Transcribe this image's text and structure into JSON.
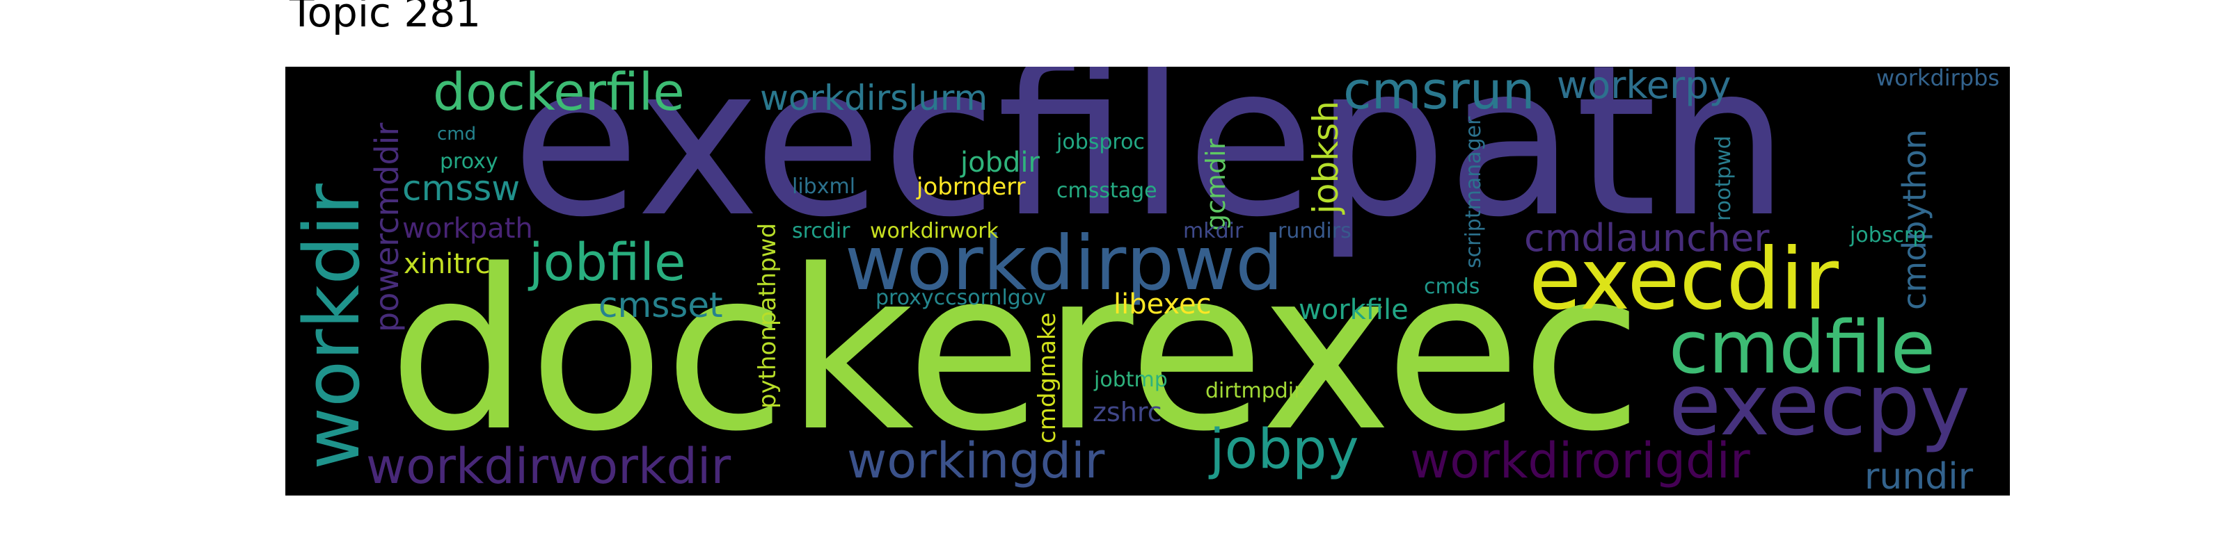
{
  "title": "Topic 281",
  "words": [
    {
      "text": "execfilepath",
      "color": "#443983"
    },
    {
      "text": "dockerexec",
      "color": "#95d840"
    },
    {
      "text": "workdirpwd",
      "color": "#355f8d"
    },
    {
      "text": "execdir",
      "color": "#dde318"
    },
    {
      "text": "cmdfile",
      "color": "#3dbc74"
    },
    {
      "text": "execpy",
      "color": "#46327e"
    },
    {
      "text": "workdir",
      "color": "#1f948c"
    },
    {
      "text": "dockerfile",
      "color": "#3dbc74"
    },
    {
      "text": "workdirslurm",
      "color": "#2a788e"
    },
    {
      "text": "cmsrun",
      "color": "#2a788e"
    },
    {
      "text": "workerpy",
      "color": "#2d708e"
    },
    {
      "text": "workdirpbs",
      "color": "#33638d"
    },
    {
      "text": "jobfile",
      "color": "#29af7f"
    },
    {
      "text": "cmsset",
      "color": "#26828e"
    },
    {
      "text": "jobpy",
      "color": "#1f9a8a"
    },
    {
      "text": "workingdir",
      "color": "#3b528b"
    },
    {
      "text": "workdirworkdir",
      "color": "#482878"
    },
    {
      "text": "workdirorigdir",
      "color": "#440154"
    },
    {
      "text": "rundir",
      "color": "#33638d"
    },
    {
      "text": "cmdlauncher",
      "color": "#472d7b"
    },
    {
      "text": "cmdpython",
      "color": "#31688e"
    },
    {
      "text": "cmssw",
      "color": "#21918c"
    },
    {
      "text": "workpath",
      "color": "#482475"
    },
    {
      "text": "xinitrc",
      "color": "#c2df23"
    },
    {
      "text": "powercmddir",
      "color": "#472c7a"
    },
    {
      "text": "jobdir",
      "color": "#2fb47c"
    },
    {
      "text": "jobrnderr",
      "color": "#fde725"
    },
    {
      "text": "jobsproc",
      "color": "#22a884"
    },
    {
      "text": "cmsstage",
      "color": "#25ab82"
    },
    {
      "text": "gcmdir",
      "color": "#5ec962"
    },
    {
      "text": "jobksh",
      "color": "#b5de2b"
    },
    {
      "text": "libxml",
      "color": "#2c728e"
    },
    {
      "text": "srcdir",
      "color": "#1fa088"
    },
    {
      "text": "workdirwork",
      "color": "#c8e020"
    },
    {
      "text": "mkdir",
      "color": "#3e4989"
    },
    {
      "text": "rundirs",
      "color": "#38598c"
    },
    {
      "text": "scriptmanager",
      "color": "#2c728e"
    },
    {
      "text": "rootpwd",
      "color": "#287d8e"
    },
    {
      "text": "jobscrp",
      "color": "#20a486"
    },
    {
      "text": "cmds",
      "color": "#1f988b"
    },
    {
      "text": "libexec",
      "color": "#fde725"
    },
    {
      "text": "workfile",
      "color": "#21a685"
    },
    {
      "text": "proxyccsornlgov",
      "color": "#24878e"
    },
    {
      "text": "pythonpathpwd",
      "color": "#b8de29"
    },
    {
      "text": "cmdgmake",
      "color": "#d2e21b"
    },
    {
      "text": "jobtmp",
      "color": "#2db27d"
    },
    {
      "text": "dirtmpdir",
      "color": "#a2da37"
    },
    {
      "text": "zshrc",
      "color": "#404688"
    },
    {
      "text": "cmd",
      "color": "#25838e"
    },
    {
      "text": "proxy",
      "color": "#22a884"
    }
  ]
}
